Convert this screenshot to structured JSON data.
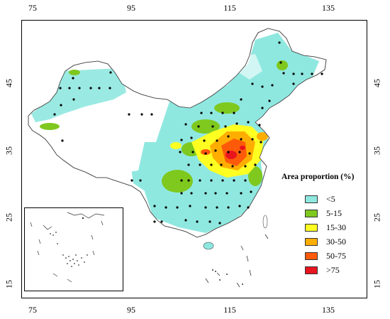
{
  "axes": {
    "x_ticks": [
      "75",
      "95",
      "115",
      "135"
    ],
    "y_ticks": [
      "45",
      "35",
      "25",
      "15"
    ]
  },
  "legend": {
    "title": "Area proportion (%)",
    "items": [
      {
        "label": "<5",
        "color": "#8fe8e0"
      },
      {
        "label": "5-15",
        "color": "#7fc81e"
      },
      {
        "label": "15-30",
        "color": "#ffff22"
      },
      {
        "label": "30-50",
        "color": "#ffae00"
      },
      {
        "label": "50-75",
        "color": "#ff5a0a"
      },
      {
        "label": ">75",
        "color": "#e8141e"
      }
    ]
  },
  "colors": {
    "land_base": "#8fe8e0",
    "outline": "#333333",
    "station_dot": "#000000"
  }
}
